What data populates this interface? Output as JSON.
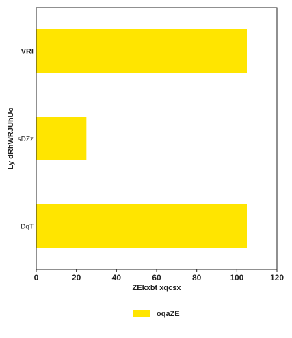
{
  "chart_data": {
    "type": "bar",
    "orientation": "horizontal",
    "title": "",
    "xlabel": "ZEkxbt xqcsx",
    "ylabel": "Ly dRhWRJUhUo",
    "categories": [
      "VRI",
      "sDZz",
      "DqT"
    ],
    "series": [
      {
        "name": "oqaZE",
        "values": [
          105,
          25,
          105
        ],
        "color": "#FFE500"
      }
    ],
    "xlim": [
      0,
      120
    ],
    "xticks": [
      0,
      20,
      40,
      60,
      80,
      100,
      120
    ],
    "grid": false,
    "legend_position": "bottom"
  }
}
